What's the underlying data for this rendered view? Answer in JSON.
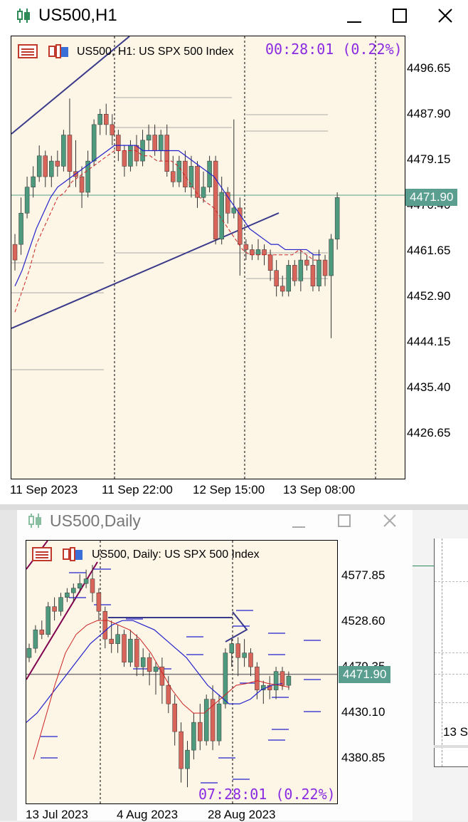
{
  "h1": {
    "window_title": "US500,H1",
    "chart_header": "US500, H1:  US SPX 500 Index",
    "countdown": "00:28:01 (0.22%)",
    "current_price": "4471.90",
    "y_ticks": [
      "4496.65",
      "4487.90",
      "4479.15",
      "4470.40",
      "4461.65",
      "4452.90",
      "4444.15",
      "4435.40",
      "4426.65"
    ],
    "x_ticks": [
      "11 Sep 2023",
      "11 Sep 22:00",
      "12 Sep 15:00",
      "13 Sep 08:00"
    ]
  },
  "daily": {
    "window_title": "US500,Daily",
    "chart_header": "US500, Daily:  US SPX 500 Index",
    "countdown": "07:28:01 (0.22%)",
    "current_price": "4471.90",
    "y_ticks": [
      "4577.85",
      "4528.60",
      "4479.35",
      "4430.10",
      "4380.85"
    ],
    "x_ticks": [
      "13 Jul 2023",
      "4 Aug 2023",
      "28 Aug 2023"
    ]
  },
  "side_window": {
    "x_tick": "13 S"
  },
  "colors": {
    "bull": "#4e9a7f",
    "bear": "#d9645a",
    "bg": "#fdf5e6",
    "trend": "#3a3a8a",
    "ma_fast": "#2222cc",
    "ma_slow": "#cc2222",
    "accent": "#8a2be2"
  }
}
